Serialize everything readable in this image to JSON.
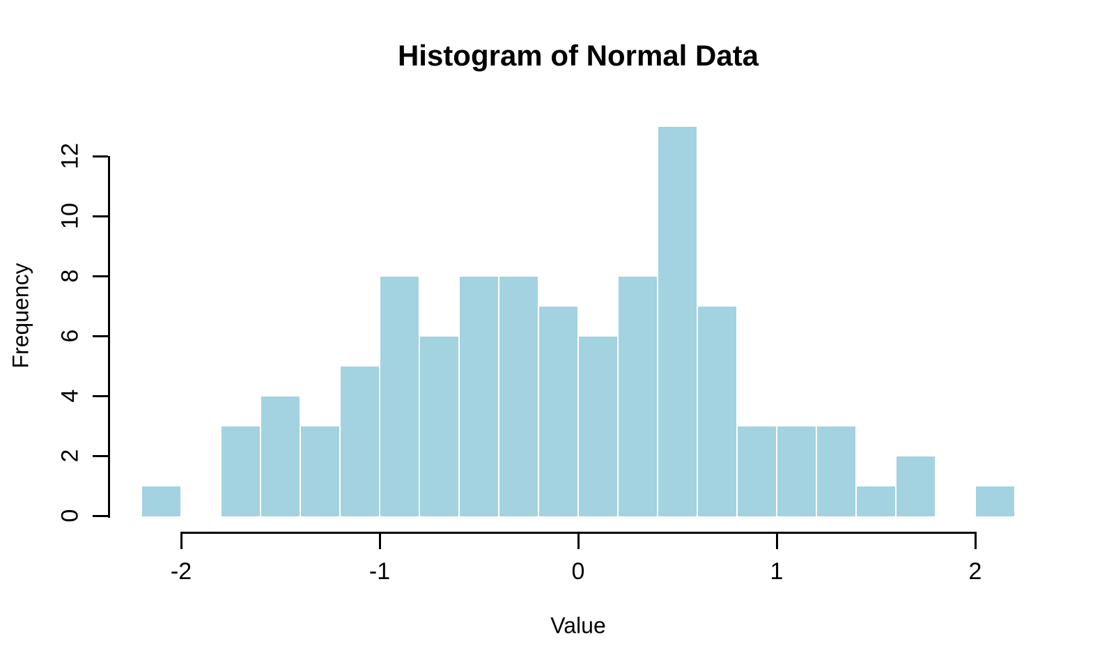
{
  "chart_data": {
    "type": "bar",
    "subtype": "histogram",
    "title": "Histogram of Normal Data",
    "xlabel": "Value",
    "ylabel": "Frequency",
    "bin_edges": [
      -2.2,
      -2.0,
      -1.8,
      -1.6,
      -1.4,
      -1.2,
      -1.0,
      -0.8,
      -0.6,
      -0.4,
      -0.2,
      0.0,
      0.2,
      0.4,
      0.6,
      0.8,
      1.0,
      1.2,
      1.4,
      1.6,
      1.8,
      2.0,
      2.2
    ],
    "counts": [
      1,
      0,
      3,
      4,
      3,
      5,
      8,
      6,
      8,
      8,
      7,
      6,
      8,
      13,
      7,
      3,
      3,
      3,
      1,
      2,
      0,
      1
    ],
    "x_ticks": [
      -2,
      -1,
      0,
      1,
      2
    ],
    "y_ticks": [
      0,
      2,
      4,
      6,
      8,
      10,
      12
    ],
    "xlim": [
      -2.2,
      2.2
    ],
    "ylim": [
      0,
      13
    ],
    "grid": false,
    "legend_position": "none",
    "bar_fill": "#A3D2E1",
    "bar_border": "#FFFFFF",
    "axis_color": "#000000",
    "text_color": "#000000",
    "background": "#FFFFFF"
  }
}
